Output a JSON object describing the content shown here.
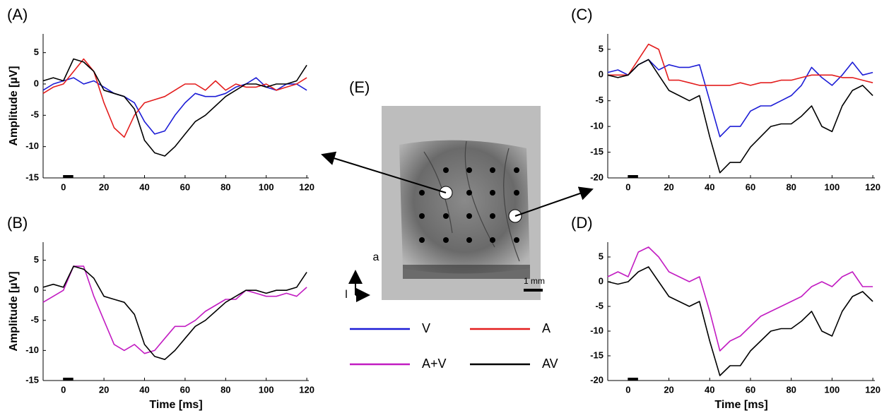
{
  "chart_data": [
    {
      "type": "line",
      "panel": "(A)",
      "ylabel": "Amplitude [µV]",
      "x": [
        -10,
        -5,
        0,
        5,
        10,
        15,
        20,
        25,
        30,
        35,
        40,
        45,
        50,
        55,
        60,
        65,
        70,
        75,
        80,
        85,
        90,
        95,
        100,
        105,
        110,
        115,
        120
      ],
      "xlim": [
        -10,
        121
      ],
      "xticks": [
        0,
        20,
        40,
        60,
        80,
        100,
        120
      ],
      "ylim": [
        -15,
        8
      ],
      "yticks": [
        -15,
        -10,
        -5,
        0,
        5
      ],
      "series": [
        {
          "name": "V",
          "color": "#1c1cd6",
          "values": [
            -1,
            0,
            0.5,
            1,
            0,
            0.5,
            -0.5,
            -1.5,
            -2,
            -3,
            -6,
            -8,
            -7.5,
            -5,
            -3,
            -1.5,
            -2,
            -2,
            -1.5,
            -0.5,
            0,
            1,
            -0.5,
            -1,
            0,
            0,
            -1
          ]
        },
        {
          "name": "A",
          "color": "#e31d1d",
          "values": [
            -1.5,
            -0.5,
            0,
            2,
            4,
            2,
            -3,
            -7,
            -8.5,
            -5,
            -3,
            -2.5,
            -2,
            -1,
            0,
            0,
            -1,
            0.5,
            -1,
            0,
            -0.5,
            -0.5,
            0,
            -1,
            -0.5,
            0,
            1
          ]
        },
        {
          "name": "AV",
          "color": "#000000",
          "values": [
            0.5,
            1,
            0.5,
            4,
            3.5,
            2,
            -1,
            -1.5,
            -2,
            -4,
            -9,
            -11,
            -11.5,
            -10,
            -8,
            -6,
            -5,
            -3.5,
            -2,
            -1,
            0,
            0,
            -0.5,
            0,
            0,
            0.5,
            3
          ]
        }
      ]
    },
    {
      "type": "line",
      "panel": "(B)",
      "ylabel": "Amplitude [µV]",
      "xlabel": "Time [ms]",
      "x": [
        -10,
        -5,
        0,
        5,
        10,
        15,
        20,
        25,
        30,
        35,
        40,
        45,
        50,
        55,
        60,
        65,
        70,
        75,
        80,
        85,
        90,
        95,
        100,
        105,
        110,
        115,
        120
      ],
      "xlim": [
        -10,
        121
      ],
      "xticks": [
        0,
        20,
        40,
        60,
        80,
        100,
        120
      ],
      "ylim": [
        -15,
        8
      ],
      "yticks": [
        -15,
        -10,
        -5,
        0,
        5
      ],
      "series": [
        {
          "name": "A+V",
          "color": "#c21cc2",
          "values": [
            -2,
            -1,
            0,
            4,
            4,
            -1,
            -5,
            -9,
            -10,
            -9,
            -10.5,
            -10,
            -8,
            -6,
            -6,
            -5,
            -3.5,
            -2.5,
            -1.5,
            -1.5,
            0,
            -0.5,
            -1,
            -1,
            -0.5,
            -1,
            0.5
          ]
        },
        {
          "name": "AV",
          "color": "#000000",
          "values": [
            0.5,
            1,
            0.5,
            4,
            3.5,
            2,
            -1,
            -1.5,
            -2,
            -4,
            -9,
            -11,
            -11.5,
            -10,
            -8,
            -6,
            -5,
            -3.5,
            -2,
            -1,
            0,
            0,
            -0.5,
            0,
            0,
            0.5,
            3
          ]
        }
      ]
    },
    {
      "type": "line",
      "panel": "(C)",
      "x": [
        -10,
        -5,
        0,
        5,
        10,
        15,
        20,
        25,
        30,
        35,
        40,
        45,
        50,
        55,
        60,
        65,
        70,
        75,
        80,
        85,
        90,
        95,
        100,
        105,
        110,
        115,
        120
      ],
      "xlim": [
        -10,
        121
      ],
      "xticks": [
        0,
        20,
        40,
        60,
        80,
        100,
        120
      ],
      "ylim": [
        -20,
        8
      ],
      "yticks": [
        -20,
        -15,
        -10,
        -5,
        0,
        5
      ],
      "series": [
        {
          "name": "V",
          "color": "#1c1cd6",
          "values": [
            0.5,
            1,
            0,
            2,
            3,
            1,
            2,
            1.5,
            1.5,
            2,
            -5,
            -12,
            -10,
            -10,
            -7,
            -6,
            -6,
            -5,
            -4,
            -2,
            1.5,
            -0.5,
            -2,
            0,
            2.5,
            0,
            0.5
          ]
        },
        {
          "name": "A",
          "color": "#e31d1d",
          "values": [
            0,
            0,
            0,
            3,
            6,
            5,
            -1,
            -1,
            -1.5,
            -2,
            -2,
            -2,
            -2,
            -1.5,
            -2,
            -1.5,
            -1.5,
            -1,
            -1,
            -0.5,
            0,
            0,
            0,
            -0.5,
            -0.5,
            -1,
            -1.5
          ]
        },
        {
          "name": "AV",
          "color": "#000000",
          "values": [
            0,
            -0.5,
            0,
            2,
            3,
            0,
            -3,
            -4,
            -5,
            -4,
            -12,
            -19,
            -17,
            -17,
            -14,
            -12,
            -10,
            -9.5,
            -9.5,
            -8,
            -6,
            -10,
            -11,
            -6,
            -3,
            -2,
            -4
          ]
        }
      ]
    },
    {
      "type": "line",
      "panel": "(D)",
      "xlabel": "Time [ms]",
      "x": [
        -10,
        -5,
        0,
        5,
        10,
        15,
        20,
        25,
        30,
        35,
        40,
        45,
        50,
        55,
        60,
        65,
        70,
        75,
        80,
        85,
        90,
        95,
        100,
        105,
        110,
        115,
        120
      ],
      "xlim": [
        -10,
        121
      ],
      "xticks": [
        0,
        20,
        40,
        60,
        80,
        100,
        120
      ],
      "ylim": [
        -20,
        8
      ],
      "yticks": [
        -20,
        -15,
        -10,
        -5,
        0,
        5
      ],
      "series": [
        {
          "name": "A+V",
          "color": "#c21cc2",
          "values": [
            1,
            2,
            1,
            6,
            7,
            5,
            2,
            1,
            0,
            1,
            -6,
            -14,
            -12,
            -11,
            -9,
            -7,
            -6,
            -5,
            -4,
            -3,
            -1,
            0,
            -1,
            1,
            2,
            -1,
            -1
          ]
        },
        {
          "name": "AV",
          "color": "#000000",
          "values": [
            0,
            -0.5,
            0,
            2,
            3,
            0,
            -3,
            -4,
            -5,
            -4,
            -12,
            -19,
            -17,
            -17,
            -14,
            -12,
            -10,
            -9.5,
            -9.5,
            -8,
            -6,
            -10,
            -11,
            -6,
            -3,
            -2,
            -4
          ]
        }
      ]
    }
  ],
  "image": {
    "panel": "(E)",
    "anterior": "a",
    "lateral": "l",
    "scale_bar": "1 mm"
  }
}
